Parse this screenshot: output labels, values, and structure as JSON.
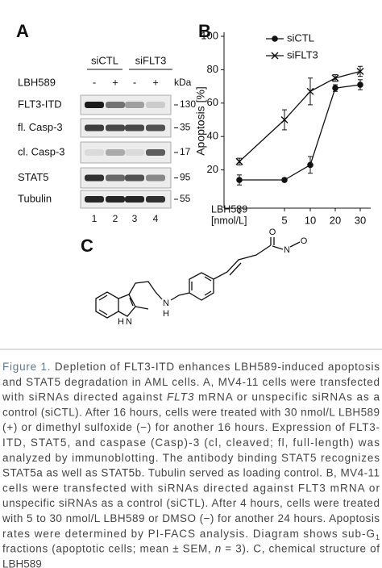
{
  "panel_a": {
    "label": "A",
    "groups": [
      "siCTL",
      "siFLT3"
    ],
    "treatment": "LBH589",
    "lanes": [
      "-",
      "+",
      "-",
      "+"
    ],
    "mw_unit": "kDa",
    "rows": [
      {
        "name": "FLT3-ITD",
        "mw": 130
      },
      {
        "name": "fl. Casp-3",
        "mw": 35
      },
      {
        "name": "cl. Casp-3",
        "mw": 17
      },
      {
        "name": "STAT5",
        "mw": 95
      },
      {
        "name": "Tubulin",
        "mw": 55
      }
    ],
    "lane_numbers": [
      1,
      2,
      3,
      4
    ]
  },
  "chart_data": {
    "type": "line",
    "panel_label": "B",
    "xlabel": [
      "LBH589",
      "[nmol/L]"
    ],
    "ylabel": "Apoptosis [%]",
    "categories": [
      "-",
      "5",
      "10",
      "20",
      "30"
    ],
    "ylim": [
      0,
      100
    ],
    "yticks": [
      20,
      40,
      60,
      80,
      100
    ],
    "series": [
      {
        "name": "siCTL",
        "color": "#111111",
        "marker": "circle",
        "values": [
          14,
          14,
          23,
          69,
          71
        ],
        "errors": [
          3,
          1,
          5,
          2,
          3
        ]
      },
      {
        "name": "siFLT3",
        "color": "#111111",
        "marker": "x",
        "values": [
          25,
          50,
          67,
          75,
          79
        ],
        "errors": [
          2,
          6,
          8,
          2,
          3
        ]
      }
    ]
  },
  "panel_c": {
    "label": "C",
    "atoms": [
      "O",
      "N",
      "O",
      "N",
      "H",
      "N",
      "H"
    ]
  },
  "caption": {
    "lines": [
      [
        {
          "text": "Figure 1.",
          "style": "label"
        },
        {
          "text": " Depletion of FLT3-ITD enhances LBH589-induced apoptosis"
        }
      ],
      [
        {
          "text": "and STAT5 degradation in AML cells. A, MV4-11 cells were transfected"
        }
      ],
      [
        {
          "text": "with siRNAs directed against "
        },
        {
          "text": "FLT3",
          "style": "italic"
        },
        {
          "text": " mRNA or unspecific siRNAs as a"
        }
      ],
      [
        {
          "text": "control (siCTL). After 16 hours, cells were treated with 30 nmol/L LBH589"
        }
      ],
      [
        {
          "text": "(+) or dimethyl sulfoxide (−) for another 16 hours. Expression of FLT3-"
        }
      ],
      [
        {
          "text": "ITD, STAT5, and caspase (Casp)-3 (cl, cleaved; fl, full-length) was"
        }
      ],
      [
        {
          "text": "analyzed by immunoblotting. The antibody binding STAT5 recognizes"
        }
      ],
      [
        {
          "text": "STAT5a as well as STAT5b. Tubulin served as loading control. B, MV4-11"
        }
      ],
      [
        {
          "text": "cells were transfected with siRNAs directed against FLT3 mRNA or"
        }
      ],
      [
        {
          "text": "unspecific siRNAs as a control (siCTL). After 4 hours, cells were treated"
        }
      ],
      [
        {
          "text": "with 5 to 30 nmol/L LBH589 or DMSO (−) for another 24 hours. Apoptosis"
        }
      ],
      [
        {
          "text": "rates were determined by PI-FACS analysis. Diagram shows sub-G"
        },
        {
          "text": "1",
          "style": "subscript"
        }
      ],
      [
        {
          "text": "fractions (apoptotic cells; mean ± SEM, "
        },
        {
          "text": "n",
          "style": "italic"
        },
        {
          "text": " = 3). C, chemical structure of"
        }
      ],
      [
        {
          "text": "LBH589"
        }
      ]
    ]
  }
}
